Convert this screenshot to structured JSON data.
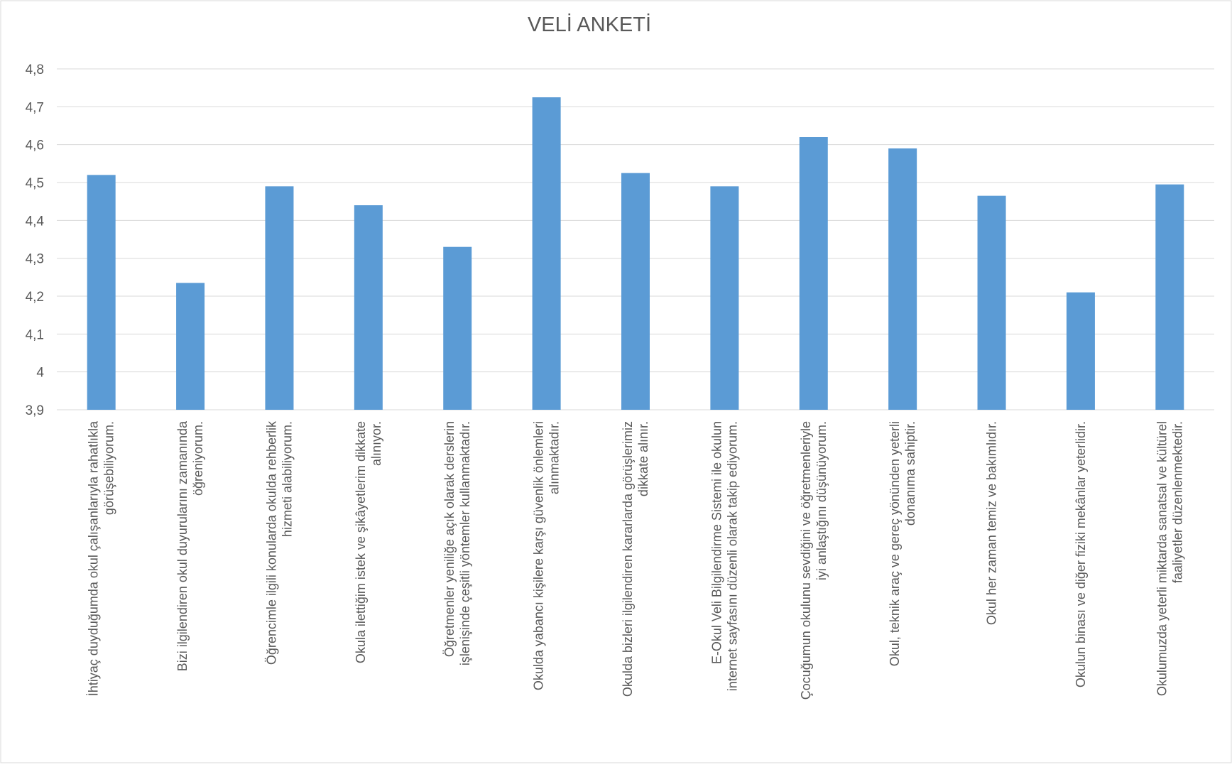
{
  "chart_data": {
    "type": "bar",
    "title": "VELİ ANKETİ",
    "xlabel": "",
    "ylabel": "",
    "ylim": [
      3.9,
      4.8
    ],
    "yticks": [
      "3,9",
      "4",
      "4,1",
      "4,2",
      "4,3",
      "4,4",
      "4,5",
      "4,6",
      "4,7",
      "4,8"
    ],
    "grid": true,
    "legend": "none",
    "bar_color": "#5b9bd5",
    "categories": [
      [
        "İhtiyaç duyduğumda okul çalışanlarıyla rahatlıkla",
        "görüşebiliyorum."
      ],
      [
        "Bizi ilgilendiren okul duyurularını zamanında",
        "öğreniyorum."
      ],
      [
        "Öğrencimle ilgili konularda okulda rehberlik",
        "hizmeti alabiliyorum."
      ],
      [
        "Okula ilettiğim istek ve şikâyetlerim dikkate",
        "alınıyor."
      ],
      [
        "Öğretmenler yeniliğe açık olarak derslerin",
        "işlenişinde çeşitli yöntemler kullanmaktadır."
      ],
      [
        "Okulda yabancı kişilere karşı güvenlik önlemleri",
        "alınmaktadır."
      ],
      [
        "Okulda bizleri ilgilendiren kararlarda görüşlerimiz",
        "dikkate alınır."
      ],
      [
        "E-Okul Veli Bilgilendirme Sistemi ile okulun",
        "internet sayfasını düzenli olarak takip ediyorum."
      ],
      [
        "Çocuğumun okulunu sevdiğini ve öğretmenleriyle",
        "iyi anlaştığını düşünüyorum."
      ],
      [
        "Okul, teknik araç ve gereç yönünden yeterli",
        "donanıma sahiptir."
      ],
      [
        "Okul her zaman temiz ve bakımlıdır."
      ],
      [
        "Okulun binası ve diğer fiziki mekânlar yeterlidir."
      ],
      [
        "Okulumuzda yeterli miktarda sanatsal ve kültürel",
        "faaliyetler düzenlenmektedir."
      ]
    ],
    "values": [
      4.52,
      4.235,
      4.49,
      4.44,
      4.33,
      4.725,
      4.525,
      4.49,
      4.62,
      4.59,
      4.465,
      4.21,
      4.495
    ]
  }
}
